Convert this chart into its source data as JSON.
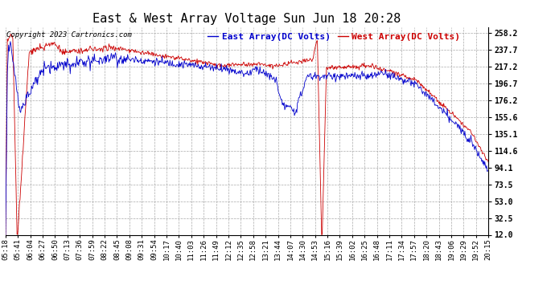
{
  "title": "East & West Array Voltage Sun Jun 18 20:28",
  "copyright": "Copyright 2023 Cartronics.com",
  "legend_east": "East Array(DC Volts)",
  "legend_west": "West Array(DC Volts)",
  "east_color": "#0000cc",
  "west_color": "#cc0000",
  "background_color": "#ffffff",
  "grid_color": "#aaaaaa",
  "yticks": [
    12.0,
    32.5,
    53.0,
    73.5,
    94.1,
    114.6,
    135.1,
    155.6,
    176.2,
    196.7,
    217.2,
    237.7,
    258.2
  ],
  "ylim": [
    12.0,
    265.0
  ],
  "xtick_labels": [
    "05:18",
    "05:41",
    "06:04",
    "06:27",
    "06:50",
    "07:13",
    "07:36",
    "07:59",
    "08:22",
    "08:45",
    "09:08",
    "09:31",
    "09:54",
    "10:17",
    "10:40",
    "11:03",
    "11:26",
    "11:49",
    "12:12",
    "12:35",
    "12:58",
    "13:21",
    "13:44",
    "14:07",
    "14:30",
    "14:53",
    "15:16",
    "15:39",
    "16:02",
    "16:25",
    "16:48",
    "17:11",
    "17:34",
    "17:57",
    "18:20",
    "18:43",
    "19:06",
    "19:29",
    "19:52",
    "20:15"
  ],
  "title_fontsize": 11,
  "axis_fontsize": 7,
  "copyright_fontsize": 6.5,
  "legend_fontsize": 8,
  "line_width": 0.6
}
